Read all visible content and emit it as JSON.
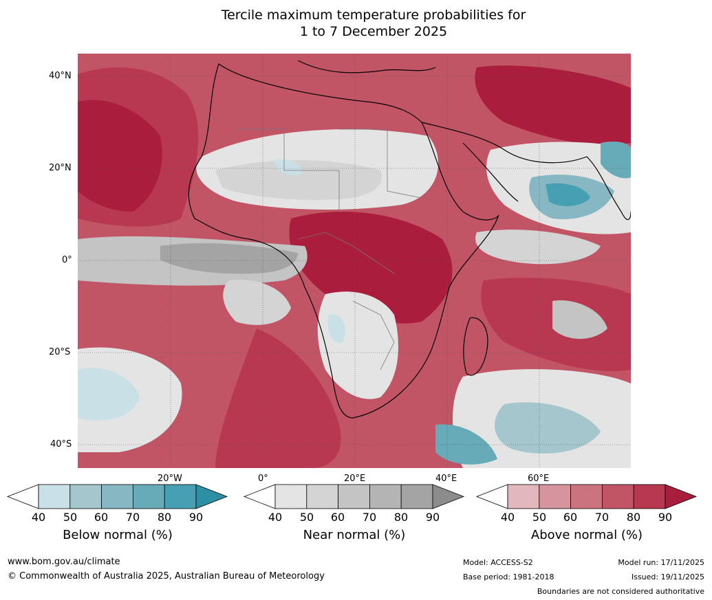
{
  "title_line1": "Tercile maximum temperature probabilities for",
  "title_line2": "1 to 7 December 2025",
  "lat_labels": [
    "40°N",
    "20°N",
    "0°",
    "20°S",
    "40°S"
  ],
  "lon_labels": [
    "20°W",
    "0°",
    "20°E",
    "40°E",
    "60°E"
  ],
  "colorbars": {
    "below": {
      "title": "Below normal (%)",
      "ticks": [
        "40",
        "50",
        "60",
        "70",
        "80",
        "90"
      ],
      "colors": [
        "#ffffff",
        "#c9e0e7",
        "#a6c6cd",
        "#86b7c2",
        "#67abb8",
        "#469fb2",
        "#2d8fa4"
      ]
    },
    "near": {
      "title": "Near normal (%)",
      "ticks": [
        "40",
        "50",
        "60",
        "70",
        "80",
        "90"
      ],
      "colors": [
        "#ffffff",
        "#e4e4e4",
        "#d4d4d4",
        "#c4c4c4",
        "#b4b4b4",
        "#a4a4a4",
        "#8c8c8c"
      ]
    },
    "above": {
      "title": "Above normal (%)",
      "ticks": [
        "40",
        "50",
        "60",
        "70",
        "80",
        "90"
      ],
      "colors": [
        "#ffffff",
        "#e2b7be",
        "#d6949e",
        "#cb737e",
        "#c15566",
        "#b73850",
        "#ab1d3c"
      ]
    }
  },
  "footer": {
    "website": "www.bom.gov.au/climate",
    "copyright": "© Commonwealth of Australia 2025, Australian Bureau of Meteorology",
    "model": "Model: ACCESS-S2",
    "base_period": "Base period: 1981-2018",
    "model_run": "Model run: 17/11/2025",
    "issued": "Issued: 19/11/2025",
    "disclaimer": "Boundaries are not considered authoritative"
  }
}
